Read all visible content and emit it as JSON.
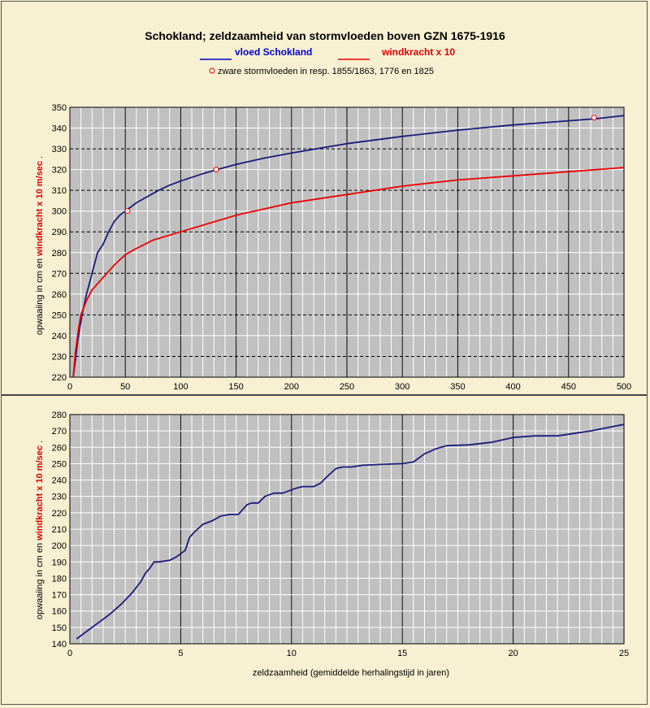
{
  "title": "Schokland; zeldzaamheid van stormvloeden boven GZN 1675-1916",
  "legend": {
    "blue_label": "vloed Schokland",
    "red_label": "windkracht x 10",
    "marker_note": "zware stormvloeden in resp. 1855/1863, 1776 en 1825"
  },
  "colors": {
    "blue": "#1a1a7a",
    "red": "#ee0000",
    "plot_bg": "#c0c0c0",
    "page_bg": "#f8f0d2"
  },
  "ylabel_parts": {
    "pre": "opwaaiing in cm en ",
    "bold": "windkracht x 10 m/sec",
    "post": " ."
  },
  "chart_data": [
    {
      "type": "line",
      "xlim": [
        0,
        500
      ],
      "ylim": [
        220,
        350
      ],
      "xticks": [
        0,
        50,
        100,
        150,
        200,
        250,
        300,
        350,
        400,
        450,
        500
      ],
      "yticks": [
        220,
        230,
        240,
        250,
        260,
        270,
        280,
        290,
        300,
        310,
        320,
        330,
        340,
        350
      ],
      "grid": true,
      "series": [
        {
          "name": "vloed Schokland",
          "color": "blue",
          "x": [
            3,
            5,
            7,
            9,
            11,
            13,
            15,
            18,
            21,
            25,
            30,
            35,
            40,
            45,
            50,
            55,
            60,
            70,
            80,
            90,
            100,
            120,
            133,
            150,
            175,
            200,
            250,
            300,
            350,
            400,
            450,
            475,
            500
          ],
          "y": [
            220,
            228,
            237,
            244,
            250,
            255,
            260,
            266,
            272,
            280,
            284,
            290,
            295,
            298,
            300,
            302,
            304,
            307,
            310,
            312.5,
            314.5,
            318,
            320,
            322.5,
            325.5,
            328,
            332.5,
            336,
            339,
            341.5,
            343.5,
            344.5,
            346
          ]
        },
        {
          "name": "windkracht x 10",
          "color": "red",
          "x": [
            3,
            5,
            8,
            10,
            15,
            20,
            30,
            40,
            50,
            60,
            75,
            100,
            125,
            150,
            200,
            250,
            300,
            350,
            400,
            450,
            500
          ],
          "y": [
            220,
            232,
            244,
            250,
            257,
            262,
            268,
            274,
            279,
            282,
            286,
            290,
            294,
            298,
            304,
            308,
            312,
            315,
            317,
            319,
            321
          ]
        }
      ],
      "markers": [
        {
          "x": 52,
          "y": 300
        },
        {
          "x": 132,
          "y": 320
        },
        {
          "x": 473,
          "y": 345
        }
      ]
    },
    {
      "type": "line",
      "xlim": [
        0,
        25
      ],
      "ylim": [
        140,
        280
      ],
      "xticks": [
        0,
        5,
        10,
        15,
        20,
        25
      ],
      "yticks": [
        140,
        150,
        160,
        170,
        180,
        190,
        200,
        210,
        220,
        230,
        240,
        250,
        260,
        270,
        280
      ],
      "grid": true,
      "xlabel": "zeldzaamheid (gemiddelde herhalingstijd in jaren)",
      "series": [
        {
          "name": "vloed Schokland",
          "color": "blue",
          "x": [
            0.3,
            0.8,
            1.3,
            1.8,
            2.3,
            2.8,
            3.2,
            3.4,
            3.6,
            3.8,
            4.0,
            4.5,
            4.8,
            5.2,
            5.4,
            5.6,
            6.0,
            6.4,
            6.8,
            7.2,
            7.6,
            8.0,
            8.2,
            8.5,
            8.8,
            9.2,
            9.6,
            10.0,
            10.2,
            10.5,
            11.0,
            11.3,
            11.6,
            12.0,
            12.3,
            12.7,
            13.2,
            14.0,
            15.0,
            15.5,
            16.0,
            16.5,
            17.0,
            18.0,
            19.0,
            20.0,
            21.0,
            22.0,
            22.5,
            23.5,
            25.0
          ],
          "y": [
            143,
            148,
            153,
            158,
            164,
            171,
            178,
            183,
            186,
            190,
            190,
            191,
            193,
            197,
            205,
            208,
            213,
            215,
            218,
            219,
            219,
            225,
            226,
            226,
            230,
            232,
            232,
            234,
            235,
            236,
            236,
            238,
            242,
            247,
            248,
            248,
            249,
            249.5,
            250,
            251,
            256,
            259,
            261,
            261.5,
            263,
            266,
            267,
            267,
            268,
            270,
            274
          ]
        }
      ]
    }
  ]
}
